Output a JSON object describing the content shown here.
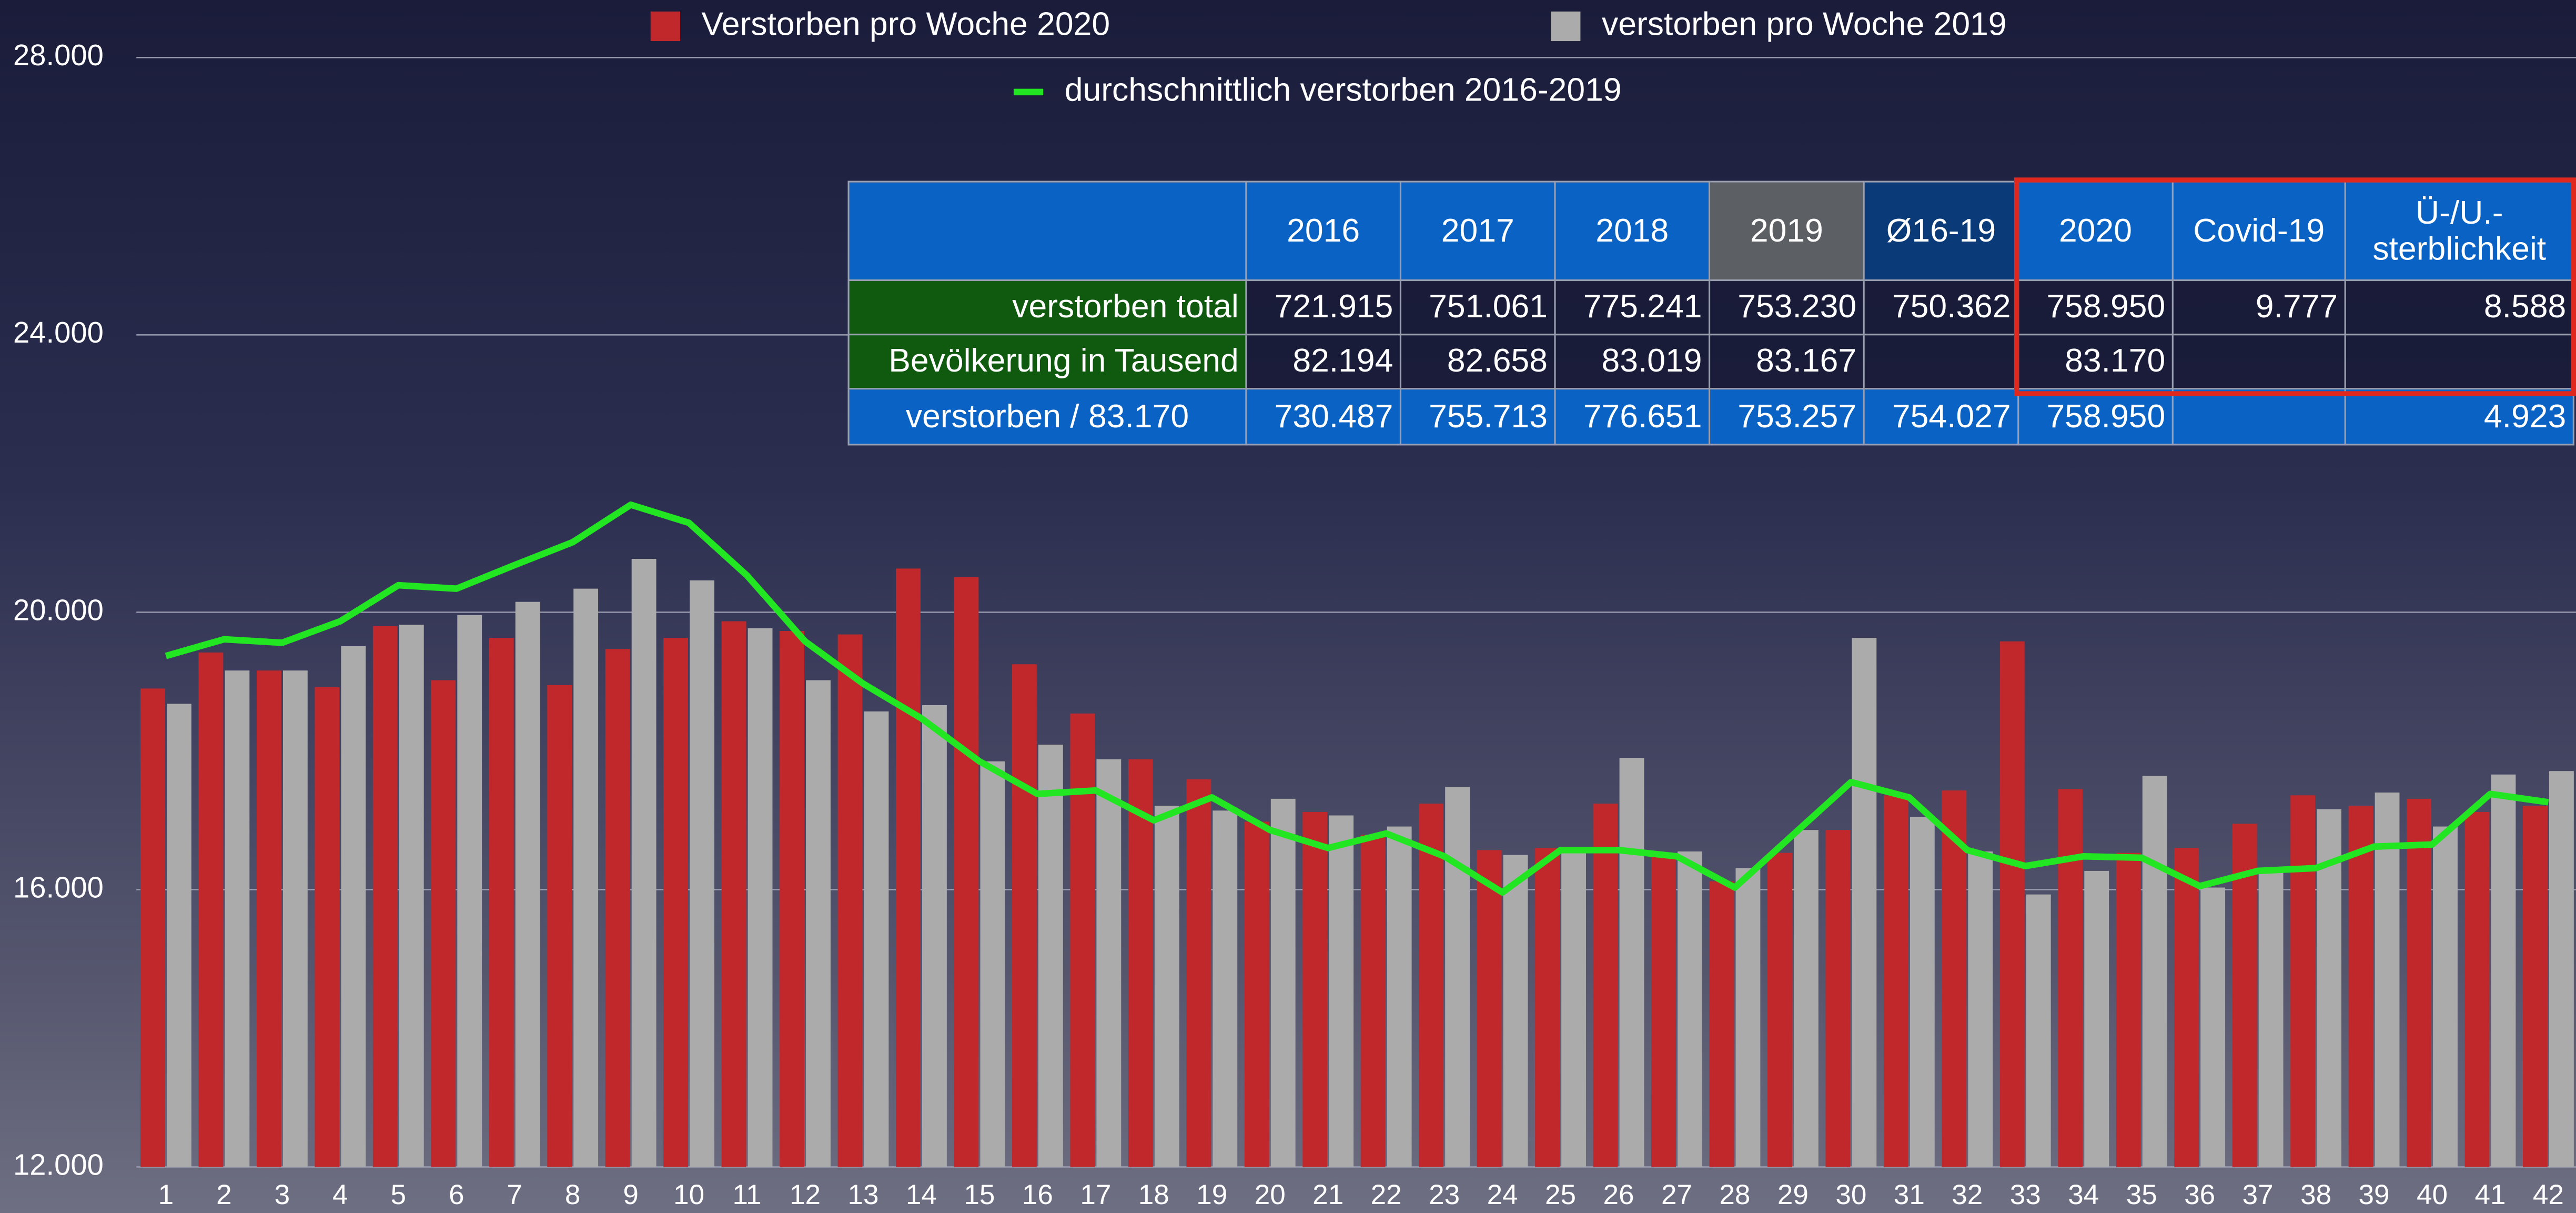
{
  "chart_data": {
    "type": "bar",
    "categories": [
      "1",
      "2",
      "3",
      "4",
      "5",
      "6",
      "7",
      "8",
      "9",
      "10",
      "11",
      "12",
      "13",
      "14",
      "15",
      "16",
      "17",
      "18",
      "19",
      "20",
      "21",
      "22",
      "23",
      "24",
      "25",
      "26",
      "27",
      "28",
      "29",
      "30",
      "31",
      "32",
      "33",
      "34",
      "35",
      "36",
      "37",
      "38",
      "39",
      "40",
      "41",
      "42"
    ],
    "series": [
      {
        "name": "Verstorben pro Woche 2020",
        "color": "#c0282c",
        "values": [
          18900,
          19420,
          19160,
          18920,
          19800,
          19020,
          19630,
          18950,
          19470,
          19630,
          19870,
          19730,
          19680,
          20630,
          20510,
          19250,
          18540,
          17880,
          17590,
          16980,
          17120,
          16790,
          17240,
          16570,
          16600,
          17240,
          16480,
          16120,
          16530,
          16860,
          17360,
          17430,
          19580,
          17450,
          16530,
          16600,
          16950,
          17360,
          17210,
          17310,
          17120,
          17210
        ]
      },
      {
        "name": "verstorben pro Woche 2019",
        "color": "#ababab",
        "values": [
          18680,
          19160,
          19160,
          19510,
          19820,
          19960,
          20150,
          20340,
          20770,
          20460,
          19770,
          19020,
          18570,
          18660,
          17850,
          18090,
          17880,
          17210,
          17140,
          17310,
          17070,
          16910,
          17480,
          16500,
          16600,
          17900,
          16550,
          16310,
          16860,
          19630,
          17050,
          16550,
          15930,
          16270,
          17640,
          16030,
          16290,
          17160,
          17400,
          16910,
          17660,
          17710
        ]
      },
      {
        "name": "durchschnittlich verstorben 2016-2019",
        "color": "#22e622",
        "type": "line",
        "values": [
          19370,
          19610,
          19560,
          19870,
          20390,
          20340,
          20680,
          21010,
          21550,
          21290,
          20530,
          19580,
          18970,
          18470,
          17850,
          17380,
          17430,
          17000,
          17330,
          16860,
          16600,
          16810,
          16480,
          15960,
          16570,
          16570,
          16480,
          16030,
          16790,
          17550,
          17330,
          16570,
          16340,
          16480,
          16460,
          16050,
          16270,
          16310,
          16620,
          16650,
          17380,
          17260
        ]
      }
    ],
    "ylim": [
      12000,
      28000
    ],
    "yticks": [
      {
        "value": 12000,
        "label": "12.000"
      },
      {
        "value": 16000,
        "label": "16.000"
      },
      {
        "value": 20000,
        "label": "20.000"
      },
      {
        "value": 24000,
        "label": "24.000"
      },
      {
        "value": 28000,
        "label": "28.000"
      }
    ],
    "grid": true
  },
  "table": {
    "header": [
      null,
      "2016",
      "2017",
      "2018",
      "2019",
      "Ø16-19",
      "2020",
      "Covid-19",
      "Ü-/U.-\nsterblichkeit"
    ],
    "rows": [
      [
        "verstorben total",
        "721.915",
        "751.061",
        "775.241",
        "753.230",
        "750.362",
        "758.950",
        "9.777",
        "8.588"
      ],
      [
        "Bevölkerung in Tausend",
        "82.194",
        "82.658",
        "83.019",
        "83.167",
        null,
        "83.170",
        null,
        null
      ],
      [
        "verstorben / 83.170",
        "730.487",
        "755.713",
        "776.651",
        "753.257",
        "754.027",
        "758.950",
        null,
        "4.923"
      ]
    ]
  }
}
